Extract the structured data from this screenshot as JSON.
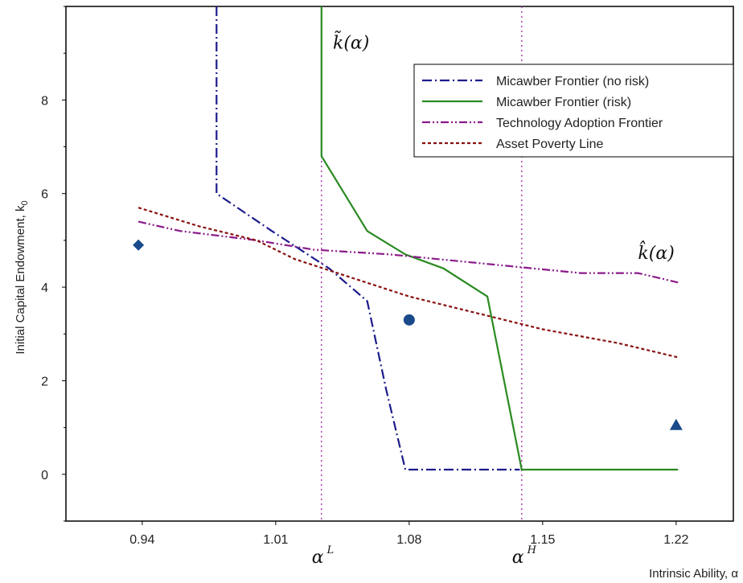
{
  "chart_data": {
    "type": "line",
    "title": "",
    "xlabel": "Intrinsic Ability, α",
    "ylabel": "Initial Capital Endowment, k",
    "ylabel_subscript": "0",
    "xlim": [
      0.9,
      1.25
    ],
    "ylim": [
      -1,
      10
    ],
    "xticks": [
      0.94,
      1.01,
      1.08,
      1.15,
      1.22
    ],
    "xtick_labels": [
      "0.94",
      "1.01",
      "1.08",
      "1.15",
      "1.22"
    ],
    "yticks": [
      0,
      2,
      4,
      6,
      8
    ],
    "ytick_labels": [
      "0",
      "2",
      "4",
      "6",
      "8"
    ],
    "grid": false,
    "legend_position": "top-right",
    "series": [
      {
        "name": "Micawber Frontier (no risk)",
        "color": "#1c1c8c",
        "dash": "dashdot",
        "points": [
          [
            0.979,
            10
          ],
          [
            0.979,
            6.0
          ],
          [
            1.008,
            5.2
          ],
          [
            1.038,
            4.4
          ],
          [
            1.058,
            3.7
          ],
          [
            1.068,
            1.8
          ],
          [
            1.078,
            0.1
          ],
          [
            1.138,
            0.1
          ]
        ]
      },
      {
        "name": "Micawber Frontier (risk)",
        "color": "#2a8a22",
        "dash": "solid",
        "points": [
          [
            1.034,
            10
          ],
          [
            1.034,
            6.8
          ],
          [
            1.058,
            5.2
          ],
          [
            1.078,
            4.7
          ],
          [
            1.098,
            4.4
          ],
          [
            1.121,
            3.8
          ],
          [
            1.139,
            0.1
          ],
          [
            1.221,
            0.1
          ]
        ]
      },
      {
        "name": "Technology Adoption Frontier",
        "color": "#8a1a8a",
        "dash": "dashdotdot",
        "points": [
          [
            0.938,
            5.4
          ],
          [
            0.96,
            5.2
          ],
          [
            1.0,
            5.0
          ],
          [
            1.03,
            4.8
          ],
          [
            1.07,
            4.7
          ],
          [
            1.12,
            4.5
          ],
          [
            1.17,
            4.3
          ],
          [
            1.2,
            4.3
          ],
          [
            1.221,
            4.1
          ]
        ]
      },
      {
        "name": "Asset Poverty Line",
        "color": "#8a1010",
        "dash": "dotted",
        "points": [
          [
            0.938,
            5.7
          ],
          [
            0.97,
            5.3
          ],
          [
            1.0,
            5.0
          ],
          [
            1.02,
            4.6
          ],
          [
            1.05,
            4.2
          ],
          [
            1.08,
            3.8
          ],
          [
            1.11,
            3.5
          ],
          [
            1.15,
            3.1
          ],
          [
            1.19,
            2.8
          ],
          [
            1.221,
            2.5
          ]
        ]
      }
    ],
    "vertical_lines": [
      {
        "label": "α",
        "superscript": "L",
        "x": 1.034,
        "color": "#b040b0"
      },
      {
        "label": "α",
        "superscript": "H",
        "x": 1.139,
        "color": "#b040b0"
      }
    ],
    "markers": [
      {
        "shape": "diamond",
        "x": 0.938,
        "y": 4.9,
        "color": "#1a4a8a"
      },
      {
        "shape": "circle",
        "x": 1.08,
        "y": 3.3,
        "color": "#1a4a8a"
      },
      {
        "shape": "triangle",
        "x": 1.22,
        "y": 1.05,
        "color": "#1a4a8a"
      }
    ],
    "annotations": [
      {
        "text": "k̃(α)",
        "x": 1.04,
        "y": 9.1
      },
      {
        "text": "k̂(α)",
        "x": 1.2,
        "y": 4.6
      }
    ]
  }
}
